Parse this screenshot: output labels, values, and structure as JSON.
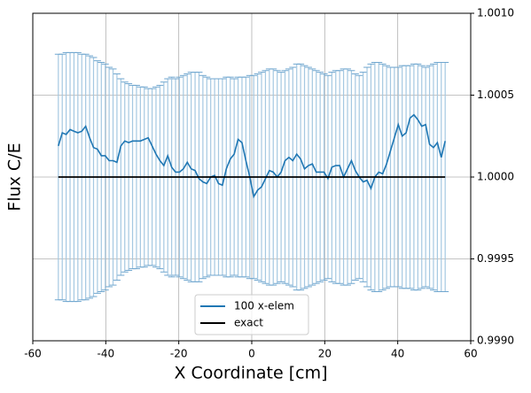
{
  "chart_data": {
    "type": "line",
    "xlabel": "X Coordinate [cm]",
    "ylabel": "Flux C/E",
    "x": [
      -53,
      -51.93,
      -50.86,
      -49.79,
      -48.72,
      -47.65,
      -46.58,
      -45.51,
      -44.43,
      -43.36,
      -42.29,
      -41.22,
      -40.15,
      -39.08,
      -38.01,
      -36.94,
      -35.87,
      -34.8,
      -33.73,
      -32.66,
      -31.59,
      -30.52,
      -29.45,
      -28.38,
      -27.31,
      -26.24,
      -25.16,
      -24.09,
      -23.02,
      -21.95,
      -20.88,
      -19.81,
      -18.74,
      -17.67,
      -16.6,
      -15.53,
      -14.46,
      -13.39,
      -12.32,
      -11.25,
      -10.18,
      -9.11,
      -8.04,
      -6.97,
      -5.89,
      -4.82,
      -3.75,
      -2.68,
      -1.61,
      -0.54,
      0.54,
      1.61,
      2.68,
      3.75,
      4.82,
      5.89,
      6.97,
      8.04,
      9.11,
      10.18,
      11.25,
      12.32,
      13.39,
      14.46,
      15.53,
      16.6,
      17.67,
      18.74,
      19.81,
      20.88,
      21.95,
      23.02,
      24.09,
      25.16,
      26.24,
      27.31,
      28.38,
      29.45,
      30.52,
      31.59,
      32.66,
      33.73,
      34.8,
      35.87,
      36.94,
      38.01,
      39.08,
      40.15,
      41.22,
      42.29,
      43.36,
      44.43,
      45.51,
      46.58,
      47.65,
      48.72,
      49.79,
      50.86,
      51.93,
      53
    ],
    "series": [
      {
        "name": "100 x-elem",
        "color": "#1f77b4",
        "values": [
          1.00019,
          1.00027,
          1.00026,
          1.00029,
          1.00028,
          1.00027,
          1.00028,
          1.00031,
          1.00024,
          1.00018,
          1.00017,
          1.00013,
          1.00013,
          1.0001,
          1.0001,
          1.00009,
          1.00019,
          1.00022,
          1.00021,
          1.00022,
          1.00022,
          1.00022,
          1.00023,
          1.00024,
          1.00019,
          1.00014,
          1.0001,
          1.00007,
          1.00013,
          1.00006,
          1.00003,
          1.00003,
          1.00005,
          1.00009,
          1.00005,
          1.00004,
          0.99999,
          0.99997,
          0.99996,
          1.0,
          1.00001,
          0.99996,
          0.99995,
          1.00005,
          1.00011,
          1.00014,
          1.00023,
          1.00021,
          1.0001,
          1.0,
          0.99988,
          0.99992,
          0.99994,
          0.99999,
          1.00004,
          1.00003,
          1.0,
          1.00003,
          1.0001,
          1.00012,
          1.0001,
          1.00014,
          1.00011,
          1.00005,
          1.00007,
          1.00008,
          1.00003,
          1.00003,
          1.00003,
          0.99999,
          1.00006,
          1.00007,
          1.00007,
          1.0,
          1.00005,
          1.0001,
          1.00004,
          1.0,
          0.99997,
          0.99998,
          0.99993,
          1.0,
          1.00003,
          1.00002,
          1.00008,
          1.00016,
          1.00024,
          1.00032,
          1.00025,
          1.00027,
          1.00036,
          1.00038,
          1.00035,
          1.00031,
          1.00032,
          1.0002,
          1.00018,
          1.00021,
          1.00012,
          1.00022
        ]
      },
      {
        "name": "exact",
        "color": "#000000",
        "values": [
          1,
          1,
          1,
          1,
          1,
          1,
          1,
          1,
          1,
          1,
          1,
          1,
          1,
          1,
          1,
          1,
          1,
          1,
          1,
          1,
          1,
          1,
          1,
          1,
          1,
          1,
          1,
          1,
          1,
          1,
          1,
          1,
          1,
          1,
          1,
          1,
          1,
          1,
          1,
          1,
          1,
          1,
          1,
          1,
          1,
          1,
          1,
          1,
          1,
          1,
          1,
          1,
          1,
          1,
          1,
          1,
          1,
          1,
          1,
          1,
          1,
          1,
          1,
          1,
          1,
          1,
          1,
          1,
          1,
          1,
          1,
          1,
          1,
          1,
          1,
          1,
          1,
          1,
          1,
          1,
          1,
          1,
          1,
          1,
          1,
          1,
          1,
          1,
          1,
          1,
          1,
          1,
          1,
          1,
          1,
          1,
          1,
          1,
          1,
          1
        ]
      }
    ],
    "errorbars": {
      "color": "#a5c8e1",
      "values": [
        0.00075,
        0.00075,
        0.00076,
        0.00076,
        0.00076,
        0.00076,
        0.00075,
        0.00075,
        0.00074,
        0.00073,
        0.00071,
        0.0007,
        0.00069,
        0.00067,
        0.00066,
        0.00063,
        0.0006,
        0.00058,
        0.00057,
        0.00056,
        0.00056,
        0.00055,
        0.00055,
        0.00054,
        0.00054,
        0.00055,
        0.00056,
        0.00058,
        0.0006,
        0.00061,
        0.0006,
        0.00061,
        0.00062,
        0.00063,
        0.00064,
        0.00064,
        0.00064,
        0.00062,
        0.00061,
        0.0006,
        0.0006,
        0.0006,
        0.0006,
        0.00061,
        0.00061,
        0.0006,
        0.00061,
        0.00061,
        0.00061,
        0.00062,
        0.00062,
        0.00063,
        0.00064,
        0.00065,
        0.00066,
        0.00066,
        0.00065,
        0.00064,
        0.00065,
        0.00066,
        0.00067,
        0.00069,
        0.00069,
        0.00068,
        0.00067,
        0.00066,
        0.00065,
        0.00064,
        0.00063,
        0.00062,
        0.00064,
        0.00065,
        0.00065,
        0.00066,
        0.00066,
        0.00065,
        0.00063,
        0.00062,
        0.00064,
        0.00067,
        0.00069,
        0.0007,
        0.0007,
        0.00069,
        0.00068,
        0.00067,
        0.00067,
        0.00067,
        0.00068,
        0.00068,
        0.00068,
        0.00069,
        0.00069,
        0.00068,
        0.00067,
        0.00068,
        0.00069,
        0.0007,
        0.0007,
        0.0007
      ]
    },
    "xlim": [
      -60,
      60
    ],
    "xticks": [
      -60,
      -40,
      -20,
      0,
      20,
      40,
      60
    ],
    "ylim": [
      0.999,
      1.001
    ],
    "yticks": [
      {
        "value": 0.999,
        "label": "0.9990"
      },
      0.9995,
      {
        "value": 1.0,
        "label": "1.0000"
      },
      1.0005,
      {
        "value": 1.001,
        "label": "1.0010"
      }
    ],
    "yaxis_side": "right",
    "grid": true,
    "legend": "lower center"
  }
}
